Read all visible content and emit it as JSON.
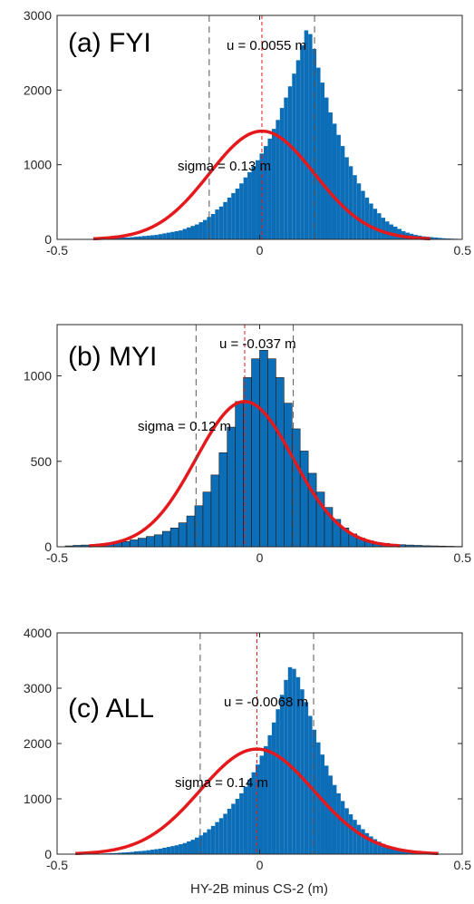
{
  "chart_data": [
    {
      "type": "bar",
      "panel_label": "(a) FYI",
      "mean_label": "u = 0.0055 m",
      "sigma_label": "sigma = 0.13 m",
      "mean": 0.0055,
      "sigma": 0.13,
      "fit_peak": 1450,
      "xlim": [
        -0.5,
        0.5
      ],
      "ylim": [
        0,
        3000
      ],
      "xticks": [
        -0.5,
        0,
        0.5
      ],
      "xtick_labels": [
        "-0.5",
        "0",
        "0.5"
      ],
      "yticks": [
        0,
        1000,
        2000,
        3000
      ],
      "ytick_labels": [
        "0",
        "1000",
        "2000",
        "3000"
      ],
      "bin_width": 0.01,
      "bin_start": -0.5,
      "values": [
        0,
        0,
        0,
        0,
        0,
        0,
        0,
        0,
        0,
        0,
        10,
        10,
        15,
        15,
        20,
        20,
        25,
        25,
        30,
        35,
        40,
        45,
        50,
        55,
        60,
        70,
        80,
        90,
        100,
        110,
        120,
        140,
        160,
        180,
        200,
        230,
        260,
        300,
        340,
        400,
        440,
        500,
        560,
        620,
        680,
        750,
        830,
        900,
        980,
        1060,
        1150,
        1250,
        1350,
        1480,
        1600,
        1760,
        1900,
        2050,
        2220,
        2400,
        2600,
        2800,
        2750,
        2550,
        2300,
        2100,
        1900,
        1700,
        1550,
        1400,
        1250,
        1100,
        980,
        860,
        750,
        650,
        560,
        480,
        410,
        350,
        290,
        240,
        200,
        170,
        140,
        110,
        90,
        75,
        60,
        50,
        40,
        35,
        30,
        25,
        20,
        15,
        12,
        10,
        8,
        5
      ],
      "x_offset": 0.5
    },
    {
      "type": "bar",
      "panel_label": "(b) MYI",
      "mean_label": "u = -0.037 m",
      "sigma_label": "sigma = 0.12 m",
      "mean": -0.037,
      "sigma": 0.12,
      "fit_peak": 850,
      "xlim": [
        -0.5,
        0.5
      ],
      "ylim": [
        0,
        1300
      ],
      "xticks": [
        -0.5,
        0,
        0.5
      ],
      "xtick_labels": [
        "-0.5",
        "0",
        "0.5"
      ],
      "yticks": [
        0,
        500,
        1000
      ],
      "ytick_labels": [
        "0",
        "500",
        "1000"
      ],
      "bin_width": 0.02,
      "bin_start": -0.48,
      "values": [
        5,
        8,
        10,
        12,
        15,
        20,
        25,
        30,
        40,
        50,
        60,
        70,
        90,
        110,
        140,
        180,
        240,
        320,
        420,
        550,
        700,
        850,
        990,
        1100,
        1150,
        1100,
        990,
        840,
        690,
        560,
        430,
        320,
        230,
        160,
        110,
        75,
        50,
        35,
        25,
        20,
        15,
        12,
        10,
        8,
        6,
        5,
        4,
        3,
        2
      ]
    },
    {
      "type": "bar",
      "panel_label": "(c) ALL",
      "mean_label": "u = -0.0068 m",
      "sigma_label": "sigma = 0.14 m",
      "mean": -0.0068,
      "sigma": 0.14,
      "fit_peak": 1900,
      "xlim": [
        -0.5,
        0.5
      ],
      "ylim": [
        0,
        4000
      ],
      "xticks": [
        -0.5,
        0,
        0.5
      ],
      "xtick_labels": [
        "-0.5",
        "0",
        "0.5"
      ],
      "yticks": [
        0,
        1000,
        2000,
        3000,
        4000
      ],
      "ytick_labels": [
        "0",
        "1000",
        "2000",
        "3000",
        "4000"
      ],
      "xlabel": "HY-2B minus CS-2 (m)",
      "bin_width": 0.01,
      "bin_start": -0.5,
      "values": [
        0,
        0,
        0,
        0,
        0,
        0,
        0,
        0,
        0,
        0,
        10,
        12,
        15,
        18,
        20,
        25,
        30,
        35,
        40,
        50,
        55,
        60,
        70,
        80,
        90,
        100,
        115,
        130,
        145,
        160,
        180,
        200,
        230,
        260,
        300,
        340,
        390,
        450,
        510,
        580,
        650,
        730,
        820,
        910,
        1000,
        1100,
        1220,
        1350,
        1480,
        1620,
        1780,
        1950,
        2150,
        2380,
        2620,
        2880,
        3150,
        3380,
        3350,
        3200,
        2980,
        2750,
        2500,
        2250,
        2020,
        1800,
        1600,
        1420,
        1250,
        1100,
        960,
        830,
        720,
        620,
        530,
        450,
        380,
        320,
        270,
        225,
        185,
        150,
        120,
        95,
        75,
        60,
        50,
        40,
        32,
        25,
        20,
        15,
        12,
        10,
        8,
        6,
        5,
        4,
        3,
        2
      ]
    }
  ]
}
